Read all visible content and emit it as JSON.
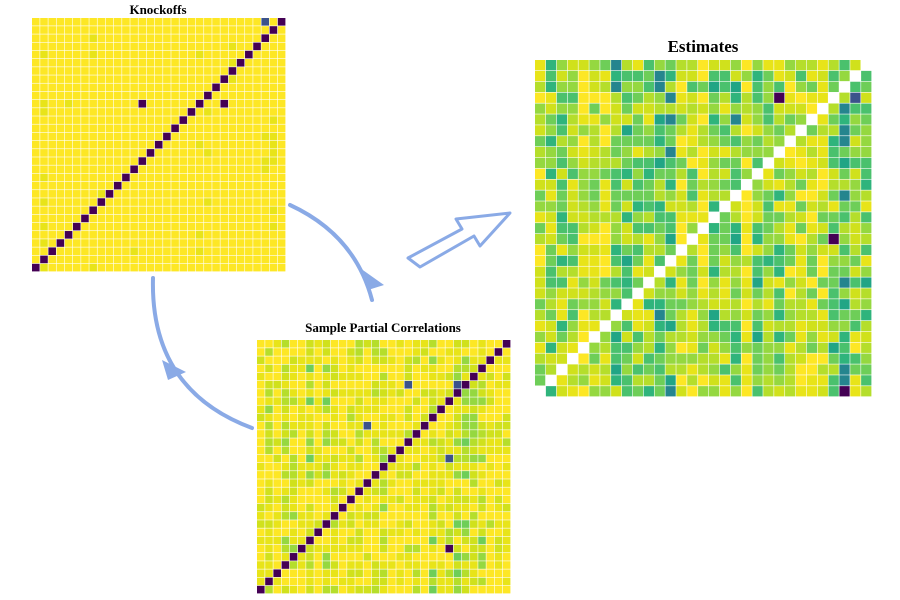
{
  "panels": [
    {
      "title": "Knockoffs"
    },
    {
      "title": "Sample Partial Correlations"
    },
    {
      "title": "Estimates"
    }
  ]
}
